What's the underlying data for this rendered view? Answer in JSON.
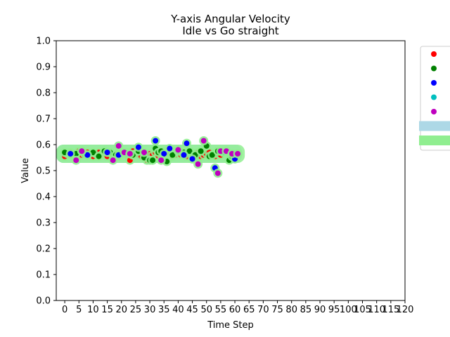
{
  "chart_data": {
    "type": "scatter",
    "title": "Y-axis Angular Velocity",
    "subtitle": "Idle vs Go straight",
    "xlabel": "Time Step",
    "ylabel": "Value",
    "xlim": [
      -3,
      120
    ],
    "ylim": [
      0.0,
      1.0
    ],
    "xticks": [
      "0",
      "5",
      "10",
      "15",
      "20",
      "25",
      "30",
      "35",
      "40",
      "45",
      "50",
      "55",
      "60",
      "65",
      "70",
      "75",
      "80",
      "85",
      "90",
      "95",
      "100",
      "105",
      "110",
      "115",
      "120"
    ],
    "yticks": [
      "0.0",
      "0.1",
      "0.2",
      "0.3",
      "0.4",
      "0.5",
      "0.6",
      "0.7",
      "0.8",
      "0.9",
      "1.0"
    ],
    "grid": false,
    "legend_position": "right-outside",
    "bands": [
      {
        "color": "#add8e6",
        "x_range": [
          0,
          61
        ],
        "y_center": 0.565
      },
      {
        "color": "#90ee90",
        "x_range": [
          0,
          62
        ],
        "y_center": 0.565
      }
    ],
    "series": [
      {
        "color": "#ff0000",
        "x": [
          0,
          1,
          2,
          3,
          4,
          5,
          6,
          7,
          8,
          9,
          10,
          11,
          12,
          13,
          14,
          15,
          16,
          17,
          18,
          19,
          20,
          21,
          22,
          23,
          24,
          25,
          26,
          27,
          28,
          29,
          30,
          31,
          32,
          33,
          34,
          35,
          36,
          37,
          38,
          39,
          40,
          41,
          42,
          43,
          44,
          45,
          46,
          47,
          48,
          49,
          50,
          51,
          52,
          53,
          54,
          55
        ],
        "y": [
          0.555,
          0.565,
          0.57,
          0.56,
          0.555,
          0.575,
          0.56,
          0.565,
          0.57,
          0.56,
          0.555,
          0.565,
          0.57,
          0.56,
          0.565,
          0.555,
          0.57,
          0.56,
          0.565,
          0.555,
          0.57,
          0.565,
          0.56,
          0.54,
          0.575,
          0.565,
          0.56,
          0.555,
          0.57,
          0.54,
          0.565,
          0.56,
          0.57,
          0.555,
          0.565,
          0.56,
          0.57,
          0.565,
          0.555,
          0.56,
          0.57,
          0.56,
          0.565,
          0.555,
          0.57,
          0.56,
          0.565,
          0.57,
          0.555,
          0.56,
          0.565,
          0.57,
          0.56,
          0.555,
          0.565,
          0.56
        ]
      },
      {
        "color": "#008000",
        "x": [
          0,
          2,
          4,
          6,
          8,
          10,
          12,
          14,
          16,
          18,
          20,
          22,
          24,
          26,
          28,
          30,
          31,
          32,
          33,
          34,
          36,
          38,
          40,
          42,
          44,
          46,
          48,
          50,
          51,
          52,
          54,
          56,
          58,
          59
        ],
        "y": [
          0.57,
          0.56,
          0.565,
          0.575,
          0.56,
          0.57,
          0.555,
          0.575,
          0.57,
          0.56,
          0.565,
          0.57,
          0.56,
          0.575,
          0.55,
          0.54,
          0.54,
          0.585,
          0.57,
          0.575,
          0.535,
          0.56,
          0.575,
          0.57,
          0.575,
          0.56,
          0.575,
          0.595,
          0.555,
          0.56,
          0.575,
          0.57,
          0.54,
          0.555
        ]
      },
      {
        "color": "#0000ff",
        "x": [
          2,
          8,
          15,
          19,
          22,
          26,
          32,
          35,
          37,
          42,
          43,
          45,
          53,
          60
        ],
        "y": [
          0.565,
          0.56,
          0.57,
          0.56,
          0.565,
          0.59,
          0.615,
          0.565,
          0.585,
          0.56,
          0.605,
          0.545,
          0.51,
          0.545
        ]
      },
      {
        "color": "#00bfbf",
        "x": [
          56
        ],
        "y": [
          0.57
        ]
      },
      {
        "color": "#bf00bf",
        "x": [
          4,
          6,
          17,
          19,
          21,
          23,
          28,
          34,
          40,
          47,
          49,
          54,
          55,
          57,
          59,
          61
        ],
        "y": [
          0.54,
          0.575,
          0.54,
          0.595,
          0.57,
          0.565,
          0.57,
          0.54,
          0.58,
          0.525,
          0.615,
          0.49,
          0.575,
          0.575,
          0.565,
          0.565
        ]
      }
    ],
    "legend": [
      {
        "color": "#ff0000",
        "marker": "dot"
      },
      {
        "color": "#008000",
        "marker": "dot"
      },
      {
        "color": "#0000ff",
        "marker": "dot"
      },
      {
        "color": "#00bfbf",
        "marker": "dot"
      },
      {
        "color": "#bf00bf",
        "marker": "dot"
      },
      {
        "color": "#add8e6",
        "marker": "patch"
      },
      {
        "color": "#90ee90",
        "marker": "patch"
      }
    ]
  }
}
